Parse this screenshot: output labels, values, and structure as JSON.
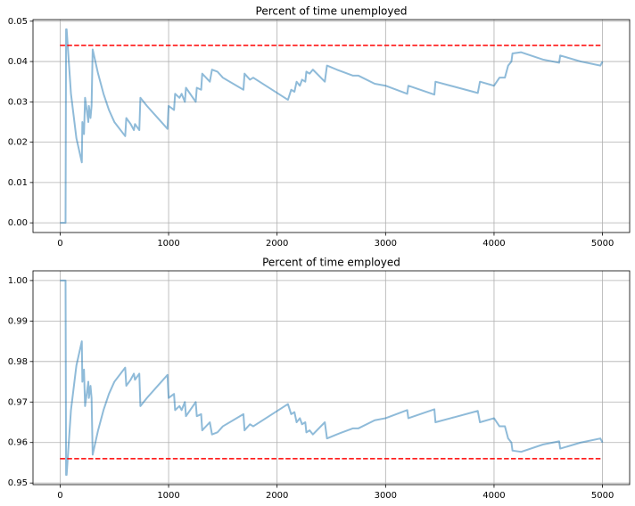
{
  "chart_data": [
    {
      "type": "line",
      "title": "Percent of time unemployed",
      "x": [
        0,
        50,
        55,
        60,
        100,
        150,
        200,
        205,
        220,
        230,
        250,
        260,
        265,
        280,
        290,
        300,
        350,
        400,
        450,
        500,
        600,
        610,
        650,
        680,
        690,
        730,
        740,
        800,
        900,
        990,
        1000,
        1050,
        1060,
        1100,
        1120,
        1150,
        1160,
        1250,
        1260,
        1300,
        1310,
        1380,
        1400,
        1450,
        1500,
        1690,
        1700,
        1750,
        1780,
        2100,
        2130,
        2160,
        2180,
        2210,
        2230,
        2260,
        2270,
        2300,
        2330,
        2440,
        2460,
        2550,
        2700,
        2750,
        2900,
        3000,
        3200,
        3210,
        3450,
        3460,
        3600,
        3850,
        3870,
        4000,
        4050,
        4100,
        4130,
        4160,
        4170,
        4250,
        4450,
        4600,
        4610,
        4800,
        4980,
        5000
      ],
      "values": [
        0,
        0,
        0.048,
        0.048,
        0.032,
        0.021,
        0.015,
        0.025,
        0.022,
        0.031,
        0.027,
        0.025,
        0.029,
        0.026,
        0.029,
        0.043,
        0.037,
        0.032,
        0.028,
        0.025,
        0.0215,
        0.026,
        0.0245,
        0.023,
        0.0245,
        0.023,
        0.031,
        0.029,
        0.026,
        0.0233,
        0.029,
        0.028,
        0.032,
        0.031,
        0.032,
        0.03,
        0.0335,
        0.03,
        0.0335,
        0.033,
        0.037,
        0.035,
        0.038,
        0.0375,
        0.036,
        0.033,
        0.037,
        0.0355,
        0.036,
        0.0305,
        0.033,
        0.0325,
        0.035,
        0.034,
        0.0355,
        0.035,
        0.0375,
        0.037,
        0.038,
        0.035,
        0.039,
        0.038,
        0.0365,
        0.0365,
        0.0345,
        0.034,
        0.032,
        0.034,
        0.0318,
        0.035,
        0.034,
        0.0322,
        0.035,
        0.034,
        0.036,
        0.036,
        0.039,
        0.04,
        0.042,
        0.0423,
        0.0405,
        0.0397,
        0.0415,
        0.04,
        0.039,
        0.04
      ],
      "color": "#1f77b4",
      "alpha": 0.5,
      "hline": {
        "value": 0.044,
        "x": [
          0,
          5000
        ],
        "color": "#ff0000"
      },
      "xlim": [
        -250,
        5250
      ],
      "xticks": [
        0,
        1000,
        2000,
        3000,
        4000,
        5000
      ],
      "ylim": [
        -0.0024,
        0.0504
      ],
      "yticks": [
        {
          "value": 0,
          "label": "0.00"
        },
        0.01,
        0.02,
        0.03,
        0.04,
        0.05
      ],
      "grid": true
    },
    {
      "type": "line",
      "title": "Percent of time employed",
      "x": [
        0,
        50,
        55,
        60,
        100,
        150,
        200,
        205,
        220,
        230,
        250,
        260,
        265,
        280,
        290,
        300,
        350,
        400,
        450,
        500,
        600,
        610,
        650,
        680,
        690,
        730,
        740,
        800,
        900,
        990,
        1000,
        1050,
        1060,
        1100,
        1120,
        1150,
        1160,
        1250,
        1260,
        1300,
        1310,
        1380,
        1400,
        1450,
        1500,
        1690,
        1700,
        1750,
        1780,
        2100,
        2130,
        2160,
        2180,
        2210,
        2230,
        2260,
        2270,
        2300,
        2330,
        2440,
        2460,
        2550,
        2700,
        2750,
        2900,
        3000,
        3200,
        3210,
        3450,
        3460,
        3600,
        3850,
        3870,
        4000,
        4050,
        4100,
        4130,
        4160,
        4170,
        4250,
        4450,
        4600,
        4610,
        4800,
        4980,
        5000
      ],
      "values": [
        1,
        1,
        0.952,
        0.952,
        0.968,
        0.979,
        0.985,
        0.975,
        0.978,
        0.969,
        0.973,
        0.975,
        0.971,
        0.974,
        0.971,
        0.957,
        0.963,
        0.968,
        0.972,
        0.975,
        0.9785,
        0.974,
        0.9755,
        0.977,
        0.9755,
        0.977,
        0.969,
        0.971,
        0.974,
        0.9767,
        0.971,
        0.972,
        0.968,
        0.969,
        0.968,
        0.97,
        0.9665,
        0.97,
        0.9665,
        0.967,
        0.963,
        0.965,
        0.962,
        0.9625,
        0.964,
        0.967,
        0.963,
        0.9645,
        0.964,
        0.9695,
        0.967,
        0.9675,
        0.965,
        0.966,
        0.9645,
        0.965,
        0.9625,
        0.963,
        0.962,
        0.965,
        0.961,
        0.962,
        0.9635,
        0.9635,
        0.9655,
        0.966,
        0.968,
        0.966,
        0.9682,
        0.965,
        0.966,
        0.9678,
        0.965,
        0.966,
        0.964,
        0.964,
        0.961,
        0.96,
        0.958,
        0.9577,
        0.9595,
        0.9603,
        0.9585,
        0.96,
        0.961,
        0.96
      ],
      "color": "#1f77b4",
      "alpha": 0.5,
      "hline": {
        "value": 0.956,
        "x": [
          0,
          5000
        ],
        "color": "#ff0000"
      },
      "xlim": [
        -250,
        5250
      ],
      "xticks": [
        0,
        1000,
        2000,
        3000,
        4000,
        5000
      ],
      "ylim": [
        0.9496,
        1.0024
      ],
      "yticks": [
        0.95,
        0.96,
        0.97,
        0.98,
        0.99,
        {
          "value": 1,
          "label": "1.00"
        }
      ],
      "grid": true
    }
  ]
}
